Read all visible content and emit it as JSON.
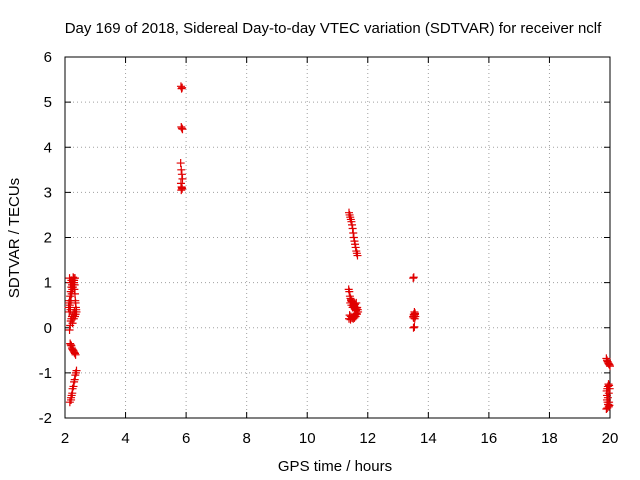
{
  "chart_data": {
    "type": "scatter",
    "title": "Day 169 of 2018, Sidereal Day-to-day VTEC variation (SDTVAR) for receiver nclf",
    "xlabel": "GPS time / hours",
    "ylabel": "SDTVAR / TECUs",
    "xlim": [
      2,
      20
    ],
    "ylim": [
      -2,
      6
    ],
    "xticks": [
      "2",
      "4",
      "6",
      "8",
      "10",
      "12",
      "14",
      "16",
      "18",
      "20"
    ],
    "yticks": [
      "-2",
      "-1",
      "0",
      "1",
      "2",
      "3",
      "4",
      "5",
      "6"
    ],
    "grid": true,
    "marker": "+",
    "color": "#e00000",
    "series": [
      {
        "name": "SDTVAR",
        "x": [
          2.12,
          2.13,
          2.14,
          2.15,
          2.16,
          2.17,
          2.18,
          2.19,
          2.2,
          2.21,
          2.22,
          2.23,
          2.24,
          2.25,
          2.26,
          2.27,
          2.28,
          2.29,
          2.3,
          2.31,
          2.32,
          2.33,
          2.34,
          2.35,
          2.36,
          2.37,
          2.38,
          2.15,
          2.17,
          2.19,
          2.21,
          2.23,
          2.25,
          2.27,
          2.29,
          2.31,
          2.33,
          2.35,
          2.15,
          2.18,
          2.21,
          2.24,
          2.27,
          2.3,
          2.33,
          2.17,
          2.19,
          2.21,
          2.23,
          2.25,
          2.27,
          2.29,
          2.31,
          2.33,
          2.35,
          2.16,
          2.2,
          2.24,
          2.28,
          2.32,
          2.36,
          2.2,
          2.22,
          2.25,
          2.3,
          2.34,
          2.38,
          5.83,
          5.85,
          5.87,
          5.84,
          5.86,
          5.88,
          5.82,
          5.84,
          5.86,
          5.88,
          5.83,
          5.85,
          5.87,
          5.84,
          5.86,
          11.38,
          11.4,
          11.42,
          11.44,
          11.46,
          11.48,
          11.5,
          11.52,
          11.54,
          11.56,
          11.58,
          11.6,
          11.62,
          11.64,
          11.66,
          11.37,
          11.39,
          11.41,
          11.43,
          11.45,
          11.47,
          11.49,
          11.51,
          11.53,
          11.55,
          11.57,
          11.59,
          11.61,
          11.63,
          11.65,
          11.67,
          11.4,
          11.44,
          11.48,
          11.52,
          11.56,
          11.6,
          11.64,
          11.38,
          11.43,
          11.48,
          11.53,
          11.58,
          11.63,
          11.68,
          11.42,
          11.46,
          11.5,
          11.54,
          11.58,
          11.62,
          11.45,
          11.5,
          11.55,
          11.6,
          13.5,
          13.52,
          13.54,
          13.56,
          13.5,
          13.53,
          13.56,
          13.51,
          13.54,
          13.52,
          13.55,
          13.57,
          13.51,
          19.88,
          19.9,
          19.92,
          19.94,
          19.96,
          19.98,
          20.0,
          19.89,
          19.91,
          19.93,
          19.95,
          19.97,
          19.99,
          19.9,
          19.92,
          19.94,
          19.96,
          19.98,
          19.88,
          19.91,
          19.94,
          19.97,
          19.9,
          19.93,
          19.96
        ],
        "y": [
          0.45,
          0.55,
          0.35,
          0.6,
          0.5,
          0.7,
          0.4,
          0.8,
          0.6,
          0.9,
          0.75,
          0.95,
          0.85,
          1.0,
          0.9,
          1.05,
          0.95,
          1.1,
          1.0,
          0.85,
          0.95,
          0.75,
          0.6,
          0.55,
          0.45,
          0.4,
          0.35,
          -0.05,
          0.05,
          0.15,
          0.2,
          0.25,
          0.1,
          0.3,
          0.2,
          0.35,
          0.25,
          0.3,
          1.1,
          1.0,
          1.05,
          0.9,
          1.12,
          1.05,
          1.1,
          -0.35,
          -0.38,
          -0.4,
          -0.45,
          -0.48,
          -0.5,
          -0.52,
          -0.55,
          -0.57,
          -0.6,
          -1.65,
          -1.6,
          -1.45,
          -1.3,
          -1.15,
          -1.0,
          -1.55,
          -1.5,
          -1.35,
          -1.2,
          -1.05,
          -0.95,
          5.35,
          5.3,
          5.32,
          4.45,
          4.42,
          4.4,
          3.65,
          3.5,
          3.4,
          3.3,
          3.2,
          3.12,
          3.08,
          3.05,
          3.1,
          2.55,
          2.5,
          2.45,
          2.4,
          2.35,
          2.28,
          2.2,
          2.1,
          2.0,
          1.92,
          1.85,
          1.78,
          1.7,
          1.65,
          1.6,
          0.85,
          0.8,
          0.7,
          0.65,
          0.6,
          0.58,
          0.55,
          0.5,
          0.48,
          0.45,
          0.42,
          0.4,
          0.38,
          0.42,
          0.45,
          0.4,
          0.28,
          0.25,
          0.22,
          0.2,
          0.22,
          0.25,
          0.3,
          0.2,
          0.18,
          0.22,
          0.25,
          0.3,
          0.32,
          0.35,
          0.55,
          0.5,
          0.45,
          0.48,
          0.52,
          0.55,
          0.62,
          0.58,
          0.5,
          0.45,
          1.1,
          1.12,
          0.35,
          0.3,
          0.25,
          0.28,
          0.32,
          0.0,
          0.02,
          0.3,
          0.2,
          0.25,
          0.22,
          -0.68,
          -0.72,
          -0.75,
          -0.78,
          -0.8,
          -0.82,
          -0.85,
          -1.4,
          -1.35,
          -1.3,
          -1.25,
          -1.28,
          -1.35,
          -1.6,
          -1.65,
          -1.7,
          -1.75,
          -1.72,
          -1.8,
          -1.78,
          -1.7,
          -1.65,
          -1.5,
          -1.55,
          -1.45
        ]
      }
    ]
  }
}
